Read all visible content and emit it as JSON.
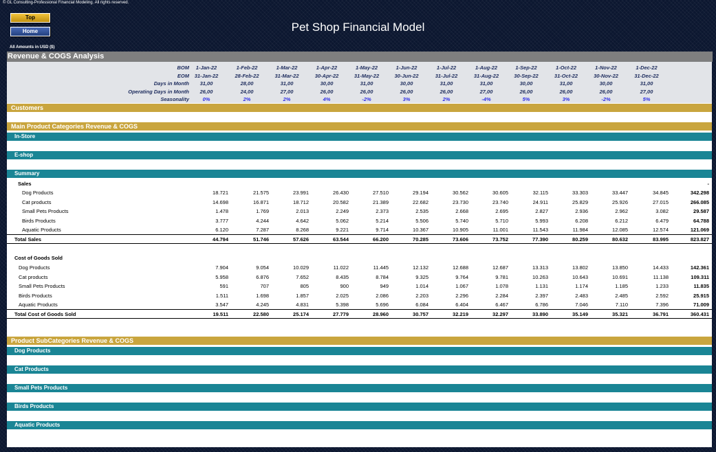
{
  "copyright": "© GL Consulting-Professional Financial Modeling. All rights reserved.",
  "nav": {
    "top_label": "Top",
    "home_label": "Home"
  },
  "title": "Pet Shop Financial Model",
  "amounts_note": "All Amounts in  USD ($)",
  "section_title": "Revenue & COGS Analysis",
  "header_rows": [
    {
      "label": "BOM",
      "values": [
        "1-Jan-22",
        "1-Feb-22",
        "1-Mar-22",
        "1-Apr-22",
        "1-May-22",
        "1-Jun-22",
        "1-Jul-22",
        "1-Aug-22",
        "1-Sep-22",
        "1-Oct-22",
        "1-Nov-22",
        "1-Dec-22"
      ]
    },
    {
      "label": "EOM",
      "values": [
        "31-Jan-22",
        "28-Feb-22",
        "31-Mar-22",
        "30-Apr-22",
        "31-May-22",
        "30-Jun-22",
        "31-Jul-22",
        "31-Aug-22",
        "30-Sep-22",
        "31-Oct-22",
        "30-Nov-22",
        "31-Dec-22"
      ]
    },
    {
      "label": "Days in Month",
      "values": [
        "31,00",
        "28,00",
        "31,00",
        "30,00",
        "31,00",
        "30,00",
        "31,00",
        "31,00",
        "30,00",
        "31,00",
        "30,00",
        "31,00"
      ]
    },
    {
      "label": "Operating Days in Month",
      "values": [
        "26,00",
        "24,00",
        "27,00",
        "26,00",
        "26,00",
        "26,00",
        "26,00",
        "27,00",
        "26,00",
        "26,00",
        "26,00",
        "27,00"
      ]
    },
    {
      "label": "Seasonality",
      "values": [
        "0%",
        "2%",
        "2%",
        "4%",
        "-2%",
        "3%",
        "2%",
        "-4%",
        "5%",
        "3%",
        "-2%",
        "5%"
      ]
    }
  ],
  "sections": {
    "customers": "Customers",
    "main_categories": "Main Product Categories Revenue & COGS",
    "in_store": "In-Store",
    "e_shop": "E-shop",
    "summary": "Summary",
    "sales_label": "Sales",
    "sales_dash": "-",
    "cogs_label": "Cost of Goods Sold",
    "sub_categories": "Product SubCategories Revenue & COGS",
    "sub_list": [
      "Dog Products",
      "Cat Products",
      "Small Pets Products",
      "Birds Products",
      "Aquatic Products"
    ]
  },
  "sales_rows": [
    {
      "label": "Dog Products",
      "values": [
        "18.721",
        "21.575",
        "23.991",
        "26.430",
        "27.510",
        "29.194",
        "30.562",
        "30.605",
        "32.115",
        "33.303",
        "33.447",
        "34.845"
      ],
      "total": "342.298"
    },
    {
      "label": "Cat products",
      "values": [
        "14.698",
        "16.871",
        "18.712",
        "20.582",
        "21.389",
        "22.682",
        "23.730",
        "23.740",
        "24.911",
        "25.829",
        "25.926",
        "27.015"
      ],
      "total": "266.085"
    },
    {
      "label": "Small Pets Products",
      "values": [
        "1.478",
        "1.769",
        "2.013",
        "2.249",
        "2.373",
        "2.535",
        "2.668",
        "2.695",
        "2.827",
        "2.936",
        "2.962",
        "3.082"
      ],
      "total": "29.587"
    },
    {
      "label": "Birds Products",
      "values": [
        "3.777",
        "4.244",
        "4.642",
        "5.062",
        "5.214",
        "5.506",
        "5.740",
        "5.710",
        "5.993",
        "6.208",
        "6.212",
        "6.479"
      ],
      "total": "64.788"
    },
    {
      "label": "Aquatic Products",
      "values": [
        "6.120",
        "7.287",
        "8.268",
        "9.221",
        "9.714",
        "10.367",
        "10.905",
        "11.001",
        "11.543",
        "11.984",
        "12.085",
        "12.574"
      ],
      "total": "121.069"
    }
  ],
  "total_sales": {
    "label": "Total Sales",
    "values": [
      "44.794",
      "51.746",
      "57.626",
      "63.544",
      "66.200",
      "70.285",
      "73.606",
      "73.752",
      "77.390",
      "80.259",
      "80.632",
      "83.995"
    ],
    "total": "823.827"
  },
  "cogs_rows": [
    {
      "label": "Dog Products",
      "values": [
        "7.904",
        "9.054",
        "10.029",
        "11.022",
        "11.445",
        "12.132",
        "12.688",
        "12.687",
        "13.313",
        "13.802",
        "13.850",
        "14.433"
      ],
      "total": "142.361"
    },
    {
      "label": "Cat products",
      "values": [
        "5.958",
        "6.876",
        "7.652",
        "8.435",
        "8.784",
        "9.325",
        "9.764",
        "9.781",
        "10.263",
        "10.643",
        "10.691",
        "11.138"
      ],
      "total": "109.311"
    },
    {
      "label": "Small Pets Products",
      "values": [
        "591",
        "707",
        "805",
        "900",
        "949",
        "1.014",
        "1.067",
        "1.078",
        "1.131",
        "1.174",
        "1.185",
        "1.233"
      ],
      "total": "11.835"
    },
    {
      "label": "Birds Products",
      "values": [
        "1.511",
        "1.698",
        "1.857",
        "2.025",
        "2.086",
        "2.203",
        "2.296",
        "2.284",
        "2.397",
        "2.483",
        "2.485",
        "2.592"
      ],
      "total": "25.915"
    },
    {
      "label": "Aquatic Products",
      "values": [
        "3.547",
        "4.245",
        "4.831",
        "5.398",
        "5.696",
        "6.084",
        "6.404",
        "6.467",
        "6.786",
        "7.046",
        "7.110",
        "7.396"
      ],
      "total": "71.009"
    }
  ],
  "total_cogs": {
    "label": "Total Cost of Goods Sold",
    "values": [
      "19.511",
      "22.580",
      "25.174",
      "27.779",
      "28.960",
      "30.757",
      "32.219",
      "32.297",
      "33.890",
      "35.149",
      "35.321",
      "36.791"
    ],
    "total": "360.431"
  }
}
